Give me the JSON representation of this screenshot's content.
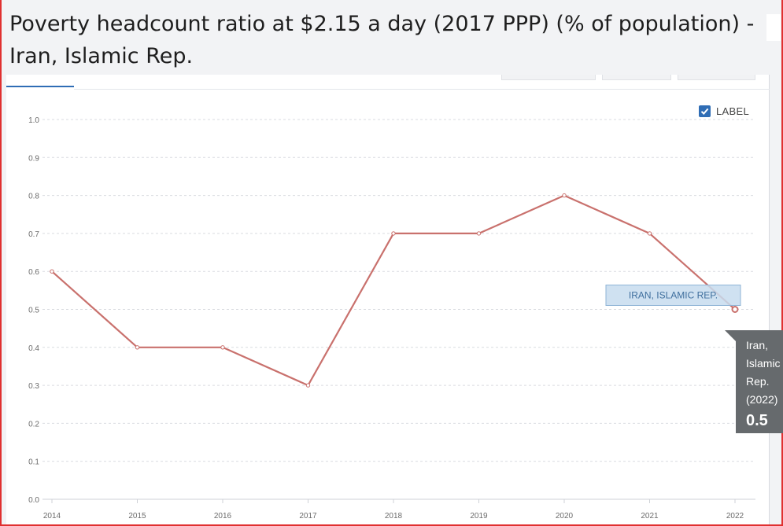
{
  "page": {
    "title": "Poverty headcount ratio at $2.15 a day (2017 PPP) (% of population) - Iran, Islamic Rep."
  },
  "controls": {
    "label_toggle": "LABEL",
    "label_checked": true
  },
  "chart_data": {
    "type": "line",
    "title": "",
    "xlabel": "",
    "ylabel": "",
    "x": [
      "2014",
      "2015",
      "2016",
      "2017",
      "2018",
      "2019",
      "2020",
      "2021",
      "2022"
    ],
    "series": [
      {
        "name": "IRAN, ISLAMIC REP.",
        "values": [
          0.6,
          0.4,
          0.4,
          0.3,
          0.7,
          0.7,
          0.8,
          0.7,
          0.5
        ],
        "color": "#c9716d"
      }
    ],
    "ylim": [
      0,
      1.0
    ],
    "yticks": [
      "0.0",
      "0.1",
      "0.2",
      "0.3",
      "0.4",
      "0.5",
      "0.6",
      "0.7",
      "0.8",
      "0.9",
      "1.0"
    ],
    "grid": true,
    "highlight_index": 8
  },
  "tooltip": {
    "line1": "Iran,",
    "line2": "Islamic",
    "line3": "Rep.",
    "line4": "(2022)",
    "value": "0.5"
  },
  "series_label_box": {
    "text": "IRAN, ISLAMIC REP."
  },
  "colors": {
    "accent": "#2f6db5",
    "series": "#c9716d",
    "grid": "#d9dbe0",
    "axis_text": "#6b6b6b",
    "tooltip_bg": "#666a6d",
    "label_box_bg": "#c7dcef",
    "label_box_border": "#8fb4d6"
  }
}
